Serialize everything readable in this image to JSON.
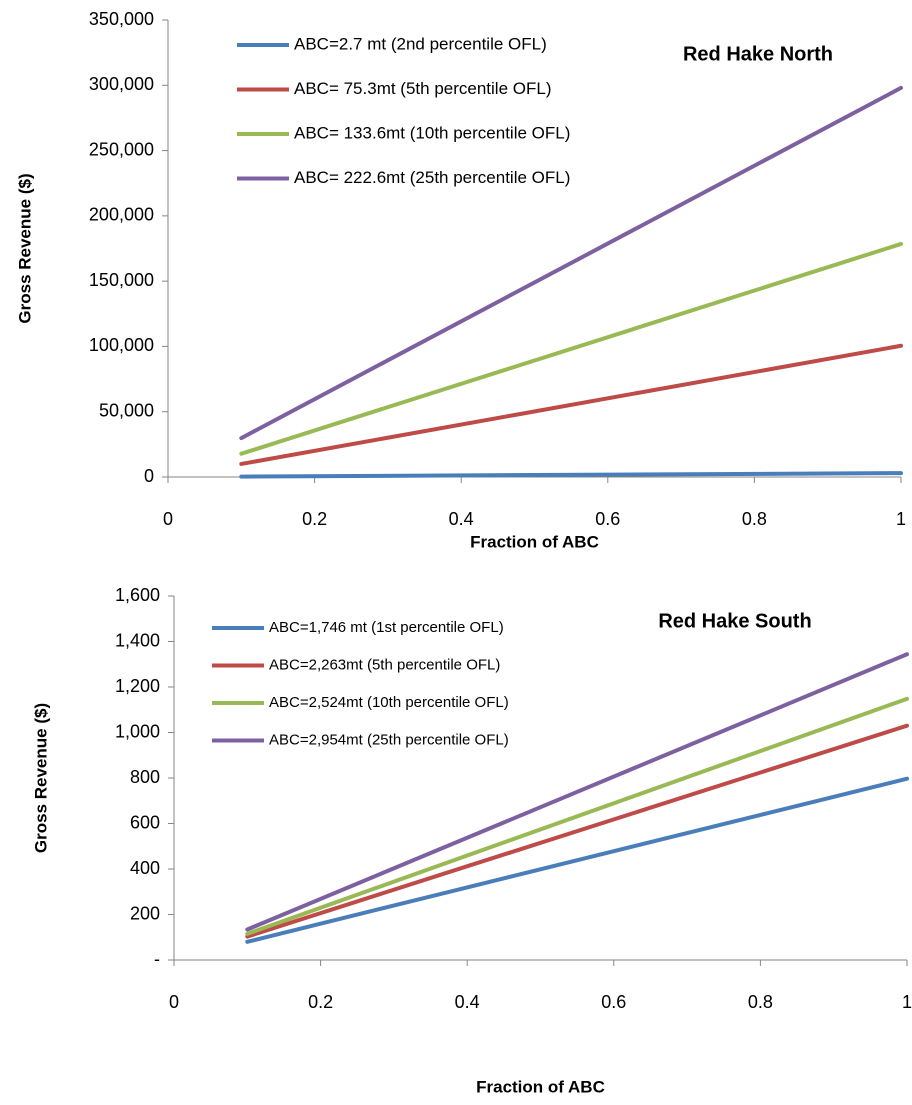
{
  "chart_data": [
    {
      "type": "line",
      "title": "Red Hake North",
      "x_label": "Fraction of ABC",
      "y_label": "Gross Revenue ($)",
      "x": [
        0.1,
        1
      ],
      "series": [
        {
          "name": "ABC=2.7 mt (2nd percentile OFL)",
          "color": "#4a7ebb",
          "values": [
            300,
            3000
          ]
        },
        {
          "name": "ABC= 75.3mt (5th percentile OFL)",
          "color": "#be4b48",
          "values": [
            10000,
            100500
          ]
        },
        {
          "name": "ABC= 133.6mt (10th percentile OFL)",
          "color": "#98b954",
          "values": [
            17800,
            178500
          ]
        },
        {
          "name": "ABC= 222.6mt (25th percentile OFL)",
          "color": "#7d60a0",
          "values": [
            29800,
            298000
          ]
        }
      ],
      "xlim": [
        0,
        1
      ],
      "xticks": [
        0,
        0.2,
        0.4,
        0.6,
        0.8,
        1
      ],
      "ylim": [
        0,
        350000
      ],
      "yticks": [
        0,
        {
          "value": 50000,
          "label": "50,000"
        },
        {
          "value": 100000,
          "label": "100,000"
        },
        {
          "value": 150000,
          "label": "150,000"
        },
        {
          "value": 200000,
          "label": "200,000"
        },
        {
          "value": 250000,
          "label": "250,000"
        },
        {
          "value": 300000,
          "label": "300,000"
        },
        {
          "value": 350000,
          "label": "350,000"
        }
      ],
      "grid": false,
      "legend": "upper left"
    },
    {
      "type": "line",
      "title": "Red Hake South",
      "x_label": "Fraction of ABC",
      "y_label": "Gross Revenue ($)",
      "x": [
        0.1,
        1
      ],
      "series": [
        {
          "name": "ABC=1,746 mt (1st percentile OFL)",
          "color": "#4a7ebb",
          "values": [
            80,
            797
          ]
        },
        {
          "name": "ABC=2,263mt (5th percentile OFL)",
          "color": "#be4b48",
          "values": [
            103,
            1030
          ]
        },
        {
          "name": "ABC=2,524mt (10th percentile OFL)",
          "color": "#98b954",
          "values": [
            115,
            1148
          ]
        },
        {
          "name": "ABC=2,954mt (25th percentile OFL)",
          "color": "#7d60a0",
          "values": [
            134,
            1344
          ]
        }
      ],
      "xlim": [
        0,
        1
      ],
      "xticks": [
        0,
        0.2,
        0.4,
        0.6,
        0.8,
        1
      ],
      "ylim": [
        0,
        1600
      ],
      "yticks": [
        {
          "value": 0,
          "label": "-"
        },
        200,
        400,
        600,
        800,
        {
          "value": 1000,
          "label": "1,000"
        },
        {
          "value": 1200,
          "label": "1,200"
        },
        {
          "value": 1400,
          "label": "1,400"
        },
        {
          "value": 1600,
          "label": "1,600"
        }
      ],
      "grid": false,
      "legend": "upper left"
    }
  ]
}
